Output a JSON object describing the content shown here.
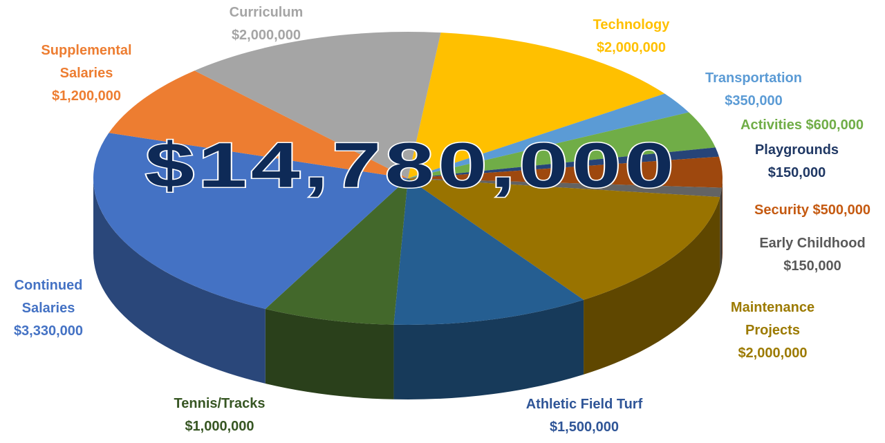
{
  "chart_data": {
    "type": "pie",
    "annotation": "$14,780,000",
    "categories": [
      "Technology",
      "Transportation",
      "Activities",
      "Playgrounds",
      "Security",
      "Early Childhood",
      "Maintenance Projects",
      "Athletic Field Turf",
      "Tennis/Tracks",
      "Continued Salaries",
      "Supplemental Salaries",
      "Curriculum"
    ],
    "values": [
      2000000,
      350000,
      600000,
      150000,
      500000,
      150000,
      2000000,
      1500000,
      1000000,
      3330000,
      1200000,
      2000000
    ],
    "value_labels": [
      "$2,000,000",
      "$350,000",
      "$600,000",
      "$150,000",
      "$500,000",
      "$150,000",
      "$2,000,000",
      "$1,500,000",
      "$1,000,000",
      "$3,330,000",
      "$1,200,000",
      "$2,000,000"
    ],
    "colors": [
      "#FFC000",
      "#5B9BD5",
      "#70AD47",
      "#264478",
      "#9E480E",
      "#636363",
      "#997300",
      "#255E91",
      "#43682B",
      "#4472C4",
      "#ED7D31",
      "#A5A5A5"
    ]
  }
}
